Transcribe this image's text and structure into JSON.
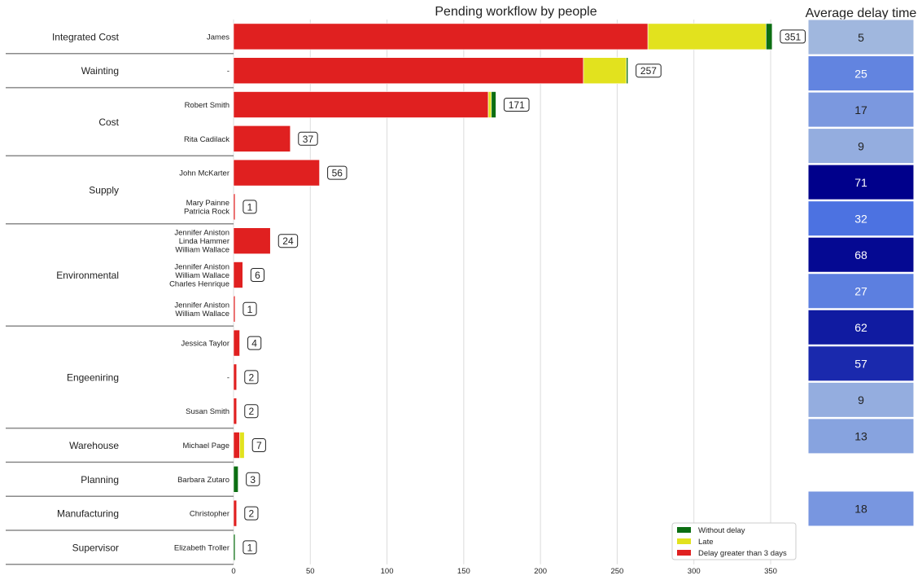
{
  "chart_data": [
    {
      "type": "bar",
      "orientation": "horizontal",
      "stacked": true,
      "title": "Pending workflow by people",
      "xlabel": "",
      "ylabel": "",
      "xlim": [
        0,
        370
      ],
      "x_ticks": [
        0,
        50,
        100,
        150,
        200,
        250,
        300,
        350
      ],
      "grid": "vertical",
      "legend_position": "bottom-right",
      "groups": [
        {
          "name": "Integrated Cost",
          "rows": 1
        },
        {
          "name": "Wainting",
          "rows": 1
        },
        {
          "name": "Cost",
          "rows": 2
        },
        {
          "name": "Supply",
          "rows": 2
        },
        {
          "name": "Environmental",
          "rows": 3
        },
        {
          "name": "Engeeniring",
          "rows": 3
        },
        {
          "name": "Warehouse",
          "rows": 1
        },
        {
          "name": "Planning",
          "rows": 1
        },
        {
          "name": "Manufacturing",
          "rows": 1
        },
        {
          "name": "Supervisor",
          "rows": 1
        }
      ],
      "categories": [
        [
          "James"
        ],
        [
          "-"
        ],
        [
          "Robert Smith"
        ],
        [
          "Rita Cadilack"
        ],
        [
          "John McKarter"
        ],
        [
          "Mary Painne",
          "Patricia Rock"
        ],
        [
          "Jennifer Aniston",
          "Linda Hammer",
          "William Wallace"
        ],
        [
          "Jennifer Aniston",
          "William Wallace",
          "Charles Henrique"
        ],
        [
          "Jennifer Aniston",
          "William Wallace"
        ],
        [
          "Jessica Taylor"
        ],
        [
          "-"
        ],
        [
          "Susan Smith"
        ],
        [
          "Michael Page"
        ],
        [
          "Barbara Zutaro"
        ],
        [
          "Christopher"
        ],
        [
          "Elizabeth Troller"
        ]
      ],
      "series": [
        {
          "name": "Delay greater than 3 days",
          "color": "#e02020",
          "values": [
            270,
            228,
            166,
            37,
            56,
            1,
            24,
            6,
            1,
            4,
            2,
            2,
            4,
            0,
            2,
            0
          ]
        },
        {
          "name": "Late",
          "color": "#e2e21e",
          "values": [
            77,
            28,
            2,
            0,
            0,
            0,
            0,
            0,
            0,
            0,
            0,
            0,
            3,
            0,
            0,
            0
          ]
        },
        {
          "name": "Without delay",
          "color": "#0c6e12",
          "values": [
            4,
            1,
            3,
            0,
            0,
            0,
            0,
            0,
            0,
            0,
            0,
            0,
            0,
            3,
            0,
            1
          ]
        }
      ],
      "totals": [
        351,
        257,
        171,
        37,
        56,
        1,
        24,
        6,
        1,
        4,
        2,
        2,
        7,
        3,
        2,
        1
      ],
      "legend_order": [
        "Without delay",
        "Late",
        "Delay greater than 3 days"
      ]
    },
    {
      "type": "heatmap",
      "title": "Average delay time",
      "values": [
        5,
        25,
        17,
        9,
        71,
        32,
        68,
        27,
        62,
        57,
        9,
        13,
        null,
        18
      ],
      "vmin": 0,
      "vmax": 71,
      "color_low": "#b0c4de",
      "color_mid": "#4169e1",
      "color_high": "#00008b"
    }
  ]
}
